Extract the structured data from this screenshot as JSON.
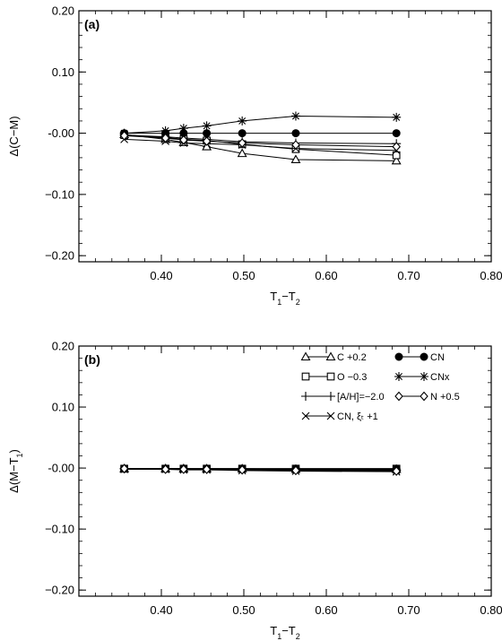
{
  "chart_data": [
    {
      "type": "line",
      "panel_label": "(a)",
      "xlabel": "T1−T2",
      "ylabel": "Δ(C−M)",
      "xlim": [
        0.3,
        0.8
      ],
      "ylim": [
        -0.21,
        0.2
      ],
      "xticks": [
        "0.40",
        "0.50",
        "0.60",
        "0.70",
        "0.80"
      ],
      "yticks": [
        "0.20",
        "0.10",
        "-0.00",
        "−0.10",
        "−0.20"
      ],
      "x": [
        0.355,
        0.405,
        0.427,
        0.455,
        0.498,
        0.563,
        0.685
      ],
      "series": [
        {
          "name": "C +0.2",
          "marker": "triangle",
          "values": [
            -0.002,
            -0.01,
            -0.015,
            -0.022,
            -0.033,
            -0.043,
            -0.045
          ]
        },
        {
          "name": "O −0.3",
          "marker": "square",
          "values": [
            -0.003,
            -0.007,
            -0.01,
            -0.012,
            -0.018,
            -0.026,
            -0.036
          ]
        },
        {
          "name": "[A/H]=−2.0",
          "marker": "plus",
          "values": [
            -0.003,
            -0.006,
            -0.008,
            -0.01,
            -0.014,
            -0.016,
            -0.017
          ]
        },
        {
          "name": "CN, ξₜ +1",
          "marker": "x",
          "values": [
            -0.01,
            -0.013,
            -0.016,
            -0.017,
            -0.019,
            -0.025,
            -0.028
          ]
        },
        {
          "name": "CN",
          "marker": "circle",
          "values": [
            0.0,
            0.0,
            0.0,
            0.0,
            0.0,
            0.0,
            0.0
          ]
        },
        {
          "name": "CNx",
          "marker": "asterisk",
          "values": [
            0.0,
            0.004,
            0.008,
            0.012,
            0.02,
            0.028,
            0.026
          ]
        },
        {
          "name": "N +0.5",
          "marker": "diamond",
          "values": [
            -0.004,
            -0.008,
            -0.011,
            -0.013,
            -0.016,
            -0.019,
            -0.022
          ]
        }
      ]
    },
    {
      "type": "line",
      "panel_label": "(b)",
      "xlabel": "T1−T2",
      "ylabel": "Δ(M−T1)",
      "xlim": [
        0.3,
        0.8
      ],
      "ylim": [
        -0.21,
        0.2
      ],
      "xticks": [
        "0.40",
        "0.50",
        "0.60",
        "0.70",
        "0.80"
      ],
      "yticks": [
        "0.20",
        "0.10",
        "-0.00",
        "−0.10",
        "−0.20"
      ],
      "legend": {
        "position": "top-right"
      },
      "x": [
        0.355,
        0.405,
        0.427,
        0.455,
        0.498,
        0.563,
        0.685
      ],
      "series": [
        {
          "name": "C +0.2",
          "marker": "triangle",
          "values": [
            -0.001,
            -0.001,
            -0.001,
            -0.001,
            -0.001,
            -0.002,
            -0.002
          ]
        },
        {
          "name": "O −0.3",
          "marker": "square",
          "values": [
            -0.001,
            -0.001,
            -0.001,
            -0.001,
            -0.001,
            -0.001,
            -0.001
          ]
        },
        {
          "name": "[A/H]=−2.0",
          "marker": "plus",
          "values": [
            -0.001,
            -0.001,
            -0.001,
            -0.002,
            -0.002,
            -0.002,
            -0.003
          ]
        },
        {
          "name": "CN, ξₜ +1",
          "marker": "x",
          "values": [
            -0.002,
            -0.002,
            -0.003,
            -0.003,
            -0.004,
            -0.005,
            -0.006
          ]
        },
        {
          "name": "CN",
          "marker": "circle",
          "values": [
            -0.001,
            -0.001,
            -0.001,
            -0.001,
            -0.001,
            -0.001,
            -0.001
          ]
        },
        {
          "name": "CNx",
          "marker": "asterisk",
          "values": [
            -0.001,
            -0.001,
            -0.001,
            -0.002,
            -0.002,
            -0.003,
            -0.004
          ]
        },
        {
          "name": "N +0.5",
          "marker": "diamond",
          "values": [
            -0.001,
            -0.002,
            -0.002,
            -0.002,
            -0.003,
            -0.004,
            -0.005
          ]
        }
      ]
    }
  ]
}
